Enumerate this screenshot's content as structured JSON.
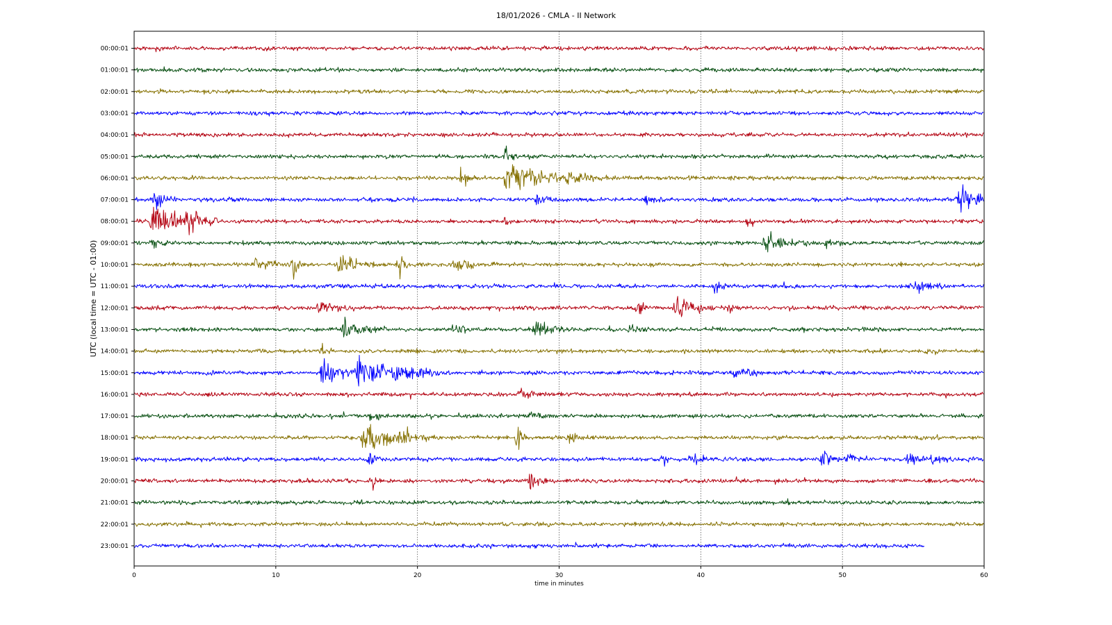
{
  "chart_data": {
    "type": "line",
    "chart_kind": "seismic helicorder",
    "title": "18/01/2026 - CMLA - II Network",
    "xlabel": "time in minutes",
    "ylabel": "UTC (local time = UTC - 01:00)",
    "xlim": [
      0,
      60
    ],
    "x_ticks": [
      "0",
      "10",
      "20",
      "30",
      "40",
      "50",
      "60"
    ],
    "grid": "vertical dotted at x ticks",
    "trace_colors": [
      "#b3000f",
      "#054d0f",
      "#857000",
      "#0000ff"
    ],
    "rows": [
      {
        "label": "00:00:01",
        "end_minute": 60,
        "events": []
      },
      {
        "label": "01:00:01",
        "end_minute": 60,
        "events": []
      },
      {
        "label": "02:00:01",
        "end_minute": 60,
        "events": []
      },
      {
        "label": "03:00:01",
        "end_minute": 60,
        "events": []
      },
      {
        "label": "04:00:01",
        "end_minute": 60,
        "events": []
      },
      {
        "label": "05:00:01",
        "end_minute": 60,
        "events": [
          {
            "minute": 26.3,
            "amp": 3.0,
            "duration": 0.4
          }
        ]
      },
      {
        "label": "06:00:01",
        "end_minute": 60,
        "events": [
          {
            "minute": 23.2,
            "amp": 2.2,
            "duration": 0.6
          },
          {
            "minute": 26.3,
            "amp": 3.5,
            "duration": 3.5
          },
          {
            "minute": 30.5,
            "amp": 1.2,
            "duration": 2
          }
        ]
      },
      {
        "label": "07:00:01",
        "end_minute": 60,
        "events": [
          {
            "minute": 1.5,
            "amp": 2.5,
            "duration": 1
          },
          {
            "minute": 28.5,
            "amp": 1.2,
            "duration": 1
          },
          {
            "minute": 36.2,
            "amp": 1.3,
            "duration": 0.8
          },
          {
            "minute": 58.2,
            "amp": 2.8,
            "duration": 3
          }
        ]
      },
      {
        "label": "08:00:01",
        "end_minute": 60,
        "events": [
          {
            "minute": 1.3,
            "amp": 4.5,
            "duration": 2.8
          },
          {
            "minute": 3.6,
            "amp": 2.0,
            "duration": 1.5
          },
          {
            "minute": 26.3,
            "amp": 1.8,
            "duration": 0.3
          },
          {
            "minute": 43.4,
            "amp": 1.2,
            "duration": 0.6
          }
        ]
      },
      {
        "label": "09:00:01",
        "end_minute": 60,
        "events": [
          {
            "minute": 1.2,
            "amp": 2.0,
            "duration": 0.8
          },
          {
            "minute": 44.5,
            "amp": 2.2,
            "duration": 2
          },
          {
            "minute": 48.8,
            "amp": 1.2,
            "duration": 1
          }
        ]
      },
      {
        "label": "10:00:01",
        "end_minute": 60,
        "events": [
          {
            "minute": 8.5,
            "amp": 1.2,
            "duration": 2
          },
          {
            "minute": 11.3,
            "amp": 2.0,
            "duration": 0.5
          },
          {
            "minute": 14.5,
            "amp": 2.2,
            "duration": 2
          },
          {
            "minute": 18.7,
            "amp": 2.4,
            "duration": 0.8
          },
          {
            "minute": 22.5,
            "amp": 1.6,
            "duration": 2
          }
        ]
      },
      {
        "label": "11:00:01",
        "end_minute": 60,
        "events": [
          {
            "minute": 41.0,
            "amp": 1.3,
            "duration": 0.8
          },
          {
            "minute": 55.2,
            "amp": 1.8,
            "duration": 1.5
          }
        ]
      },
      {
        "label": "12:00:01",
        "end_minute": 60,
        "events": [
          {
            "minute": 13.0,
            "amp": 1.8,
            "duration": 1.5
          },
          {
            "minute": 35.5,
            "amp": 2.2,
            "duration": 0.8
          },
          {
            "minute": 38.2,
            "amp": 2.6,
            "duration": 2
          },
          {
            "minute": 42.0,
            "amp": 1.2,
            "duration": 1
          }
        ]
      },
      {
        "label": "13:00:01",
        "end_minute": 60,
        "events": [
          {
            "minute": 14.8,
            "amp": 2.2,
            "duration": 2
          },
          {
            "minute": 22.5,
            "amp": 1.2,
            "duration": 1
          },
          {
            "minute": 28.3,
            "amp": 2.4,
            "duration": 1.5
          },
          {
            "minute": 35.0,
            "amp": 1.3,
            "duration": 0.6
          }
        ]
      },
      {
        "label": "14:00:01",
        "end_minute": 60,
        "events": [
          {
            "minute": 13.3,
            "amp": 1.0,
            "duration": 0.5
          }
        ]
      },
      {
        "label": "15:00:01",
        "end_minute": 60,
        "events": [
          {
            "minute": 13.3,
            "amp": 2.8,
            "duration": 2.2
          },
          {
            "minute": 15.8,
            "amp": 3.5,
            "duration": 3
          },
          {
            "minute": 18.5,
            "amp": 1.8,
            "duration": 2.5
          },
          {
            "minute": 42.5,
            "amp": 1.2,
            "duration": 1.5
          }
        ]
      },
      {
        "label": "16:00:01",
        "end_minute": 60,
        "events": [
          {
            "minute": 27.3,
            "amp": 1.3,
            "duration": 1.2
          }
        ]
      },
      {
        "label": "17:00:01",
        "end_minute": 60,
        "events": [
          {
            "minute": 16.8,
            "amp": 1.3,
            "duration": 1
          },
          {
            "minute": 28.0,
            "amp": 1.0,
            "duration": 1
          }
        ]
      },
      {
        "label": "18:00:01",
        "end_minute": 60,
        "events": [
          {
            "minute": 16.2,
            "amp": 3.5,
            "duration": 3
          },
          {
            "minute": 19.2,
            "amp": 1.8,
            "duration": 0.6
          },
          {
            "minute": 27.1,
            "amp": 2.4,
            "duration": 0.6
          },
          {
            "minute": 30.7,
            "amp": 1.2,
            "duration": 0.8
          }
        ]
      },
      {
        "label": "19:00:01",
        "end_minute": 60,
        "events": [
          {
            "minute": 16.7,
            "amp": 1.5,
            "duration": 0.5
          },
          {
            "minute": 37.3,
            "amp": 2.2,
            "duration": 0.4
          },
          {
            "minute": 39.3,
            "amp": 1.8,
            "duration": 1
          },
          {
            "minute": 48.6,
            "amp": 2.2,
            "duration": 0.8
          },
          {
            "minute": 50.4,
            "amp": 2.0,
            "duration": 0.7
          },
          {
            "minute": 54.6,
            "amp": 2.0,
            "duration": 0.8
          },
          {
            "minute": 56.4,
            "amp": 1.6,
            "duration": 0.8
          }
        ]
      },
      {
        "label": "20:00:01",
        "end_minute": 60,
        "events": [
          {
            "minute": 16.8,
            "amp": 1.8,
            "duration": 0.4
          },
          {
            "minute": 27.9,
            "amp": 2.2,
            "duration": 1.2
          }
        ]
      },
      {
        "label": "21:00:01",
        "end_minute": 60,
        "events": []
      },
      {
        "label": "22:00:01",
        "end_minute": 60,
        "events": []
      },
      {
        "label": "23:00:01",
        "end_minute": 55.8,
        "events": []
      }
    ]
  }
}
